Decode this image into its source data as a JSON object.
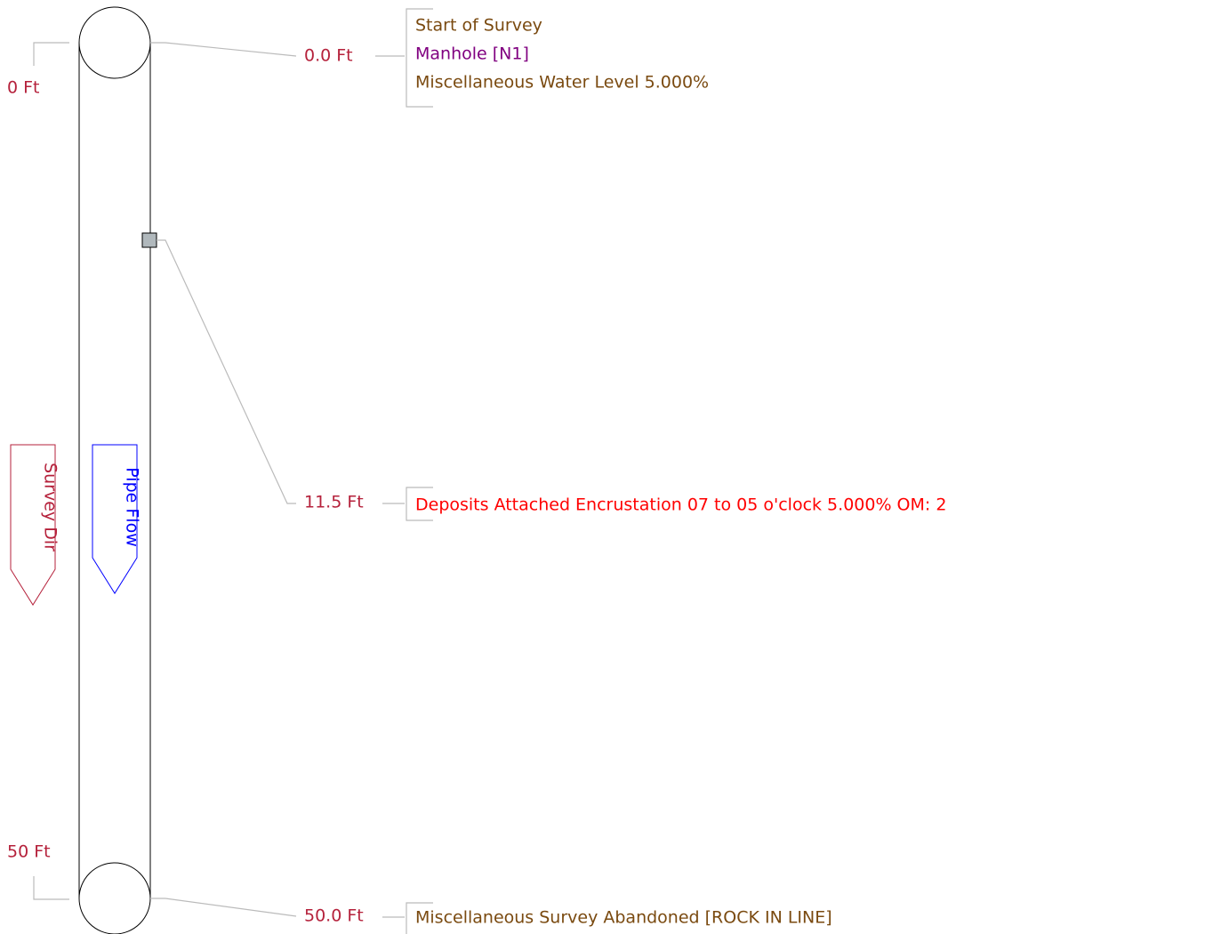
{
  "scale": {
    "start": "0 Ft",
    "end": "50 Ft"
  },
  "arrows": {
    "survey_dir": "Survey Dir",
    "pipe_flow": "Pipe Flow"
  },
  "observations": [
    {
      "distance": "0.0 Ft",
      "lines": [
        "Start of Survey",
        "Manhole [N1]",
        "Miscellaneous Water Level 5.000%"
      ]
    },
    {
      "distance": "11.5 Ft",
      "lines": [
        "Deposits Attached Encrustation 07 to 05 o'clock 5.000% OM: 2"
      ]
    },
    {
      "distance": "50.0 Ft",
      "lines": [
        "Miscellaneous Survey Abandoned [ROCK IN LINE]"
      ]
    }
  ]
}
